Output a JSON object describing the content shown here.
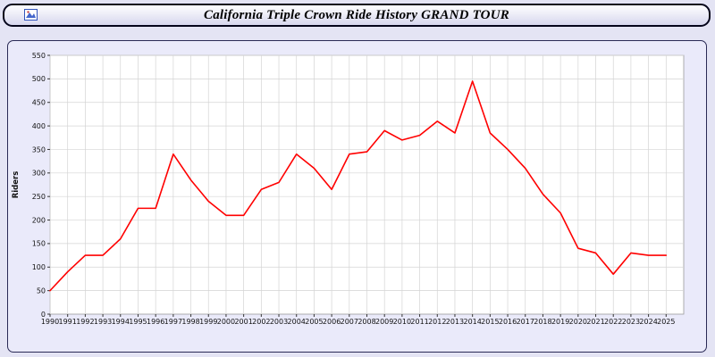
{
  "page": {
    "title": "California Triple Crown Ride History GRAND TOUR"
  },
  "chart_data": {
    "type": "line",
    "title": "California Triple Crown Ride History GRAND TOUR",
    "xlabel": "",
    "ylabel": "Riders",
    "ylim": [
      0,
      550
    ],
    "ytick_interval": 50,
    "grid": true,
    "legend_position": "none",
    "line_color": "#ff0000",
    "x": [
      1990,
      1991,
      1992,
      1993,
      1994,
      1995,
      1996,
      1997,
      1998,
      1999,
      2000,
      2001,
      2002,
      2003,
      2004,
      2005,
      2006,
      2007,
      2008,
      2009,
      2010,
      2011,
      2012,
      2013,
      2014,
      2015,
      2016,
      2017,
      2018,
      2019,
      2020,
      2021,
      2022,
      2023,
      2024,
      2025
    ],
    "series": [
      {
        "name": "Riders",
        "values": [
          50,
          90,
          125,
          125,
          160,
          225,
          225,
          340,
          285,
          240,
          210,
          210,
          265,
          280,
          340,
          310,
          265,
          340,
          345,
          390,
          370,
          380,
          410,
          385,
          495,
          385,
          350,
          310,
          255,
          215,
          140,
          130,
          85,
          130,
          125,
          125
        ]
      }
    ]
  },
  "colors": {
    "page_background": "#e4e4f4",
    "panel_background": "#eaeafa",
    "plot_background": "#ffffff",
    "grid_line": "#d4d4d4",
    "line": "#ff0000",
    "title_bar_border": "#05051a",
    "panel_border": "#2a2a55"
  }
}
